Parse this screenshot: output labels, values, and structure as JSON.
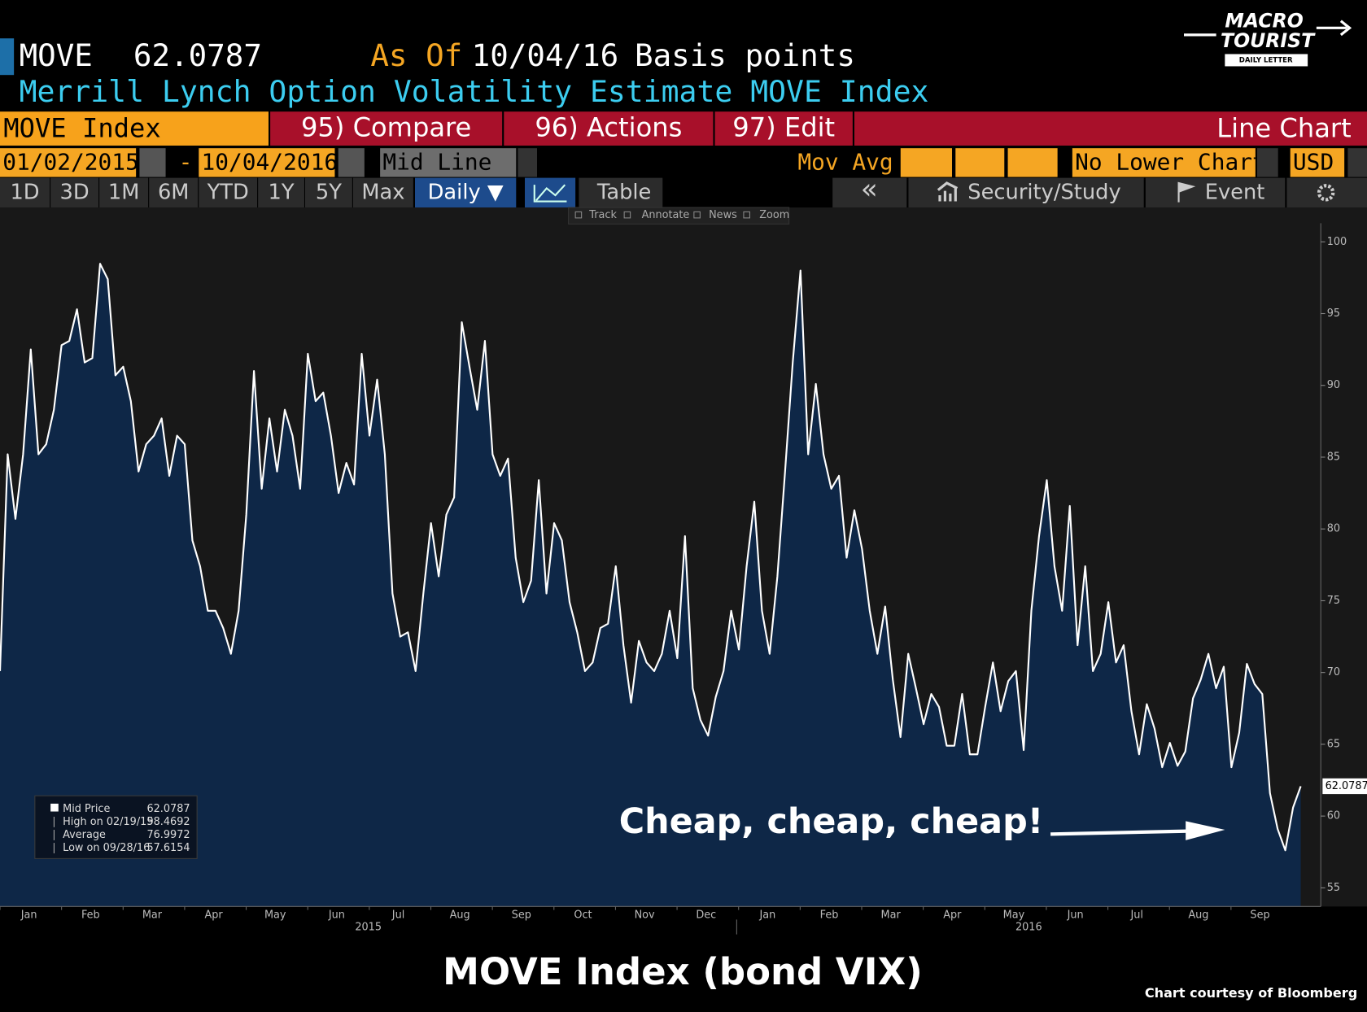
{
  "header": {
    "ticker": "MOVE",
    "value": "62.0787",
    "as_of_label": "As Of",
    "as_of": "10/04/16",
    "units": "Basis points",
    "subtitle": "Merrill Lynch Option Volatility Estimate MOVE Index"
  },
  "logo": {
    "line1": "MACRO",
    "line2": "TOURIST",
    "line3": "DAILY LETTER"
  },
  "toolbar": {
    "security": "MOVE Index",
    "buttons": [
      "95) Compare",
      "96) Actions",
      "97) Edit"
    ],
    "view": "Line Chart"
  },
  "range": {
    "start": "01/02/2015",
    "dash": "-",
    "end": "10/04/2016",
    "price": "Mid Line",
    "mov_avg": "Mov Avg",
    "lower": "No Lower Chart",
    "currency": "USD"
  },
  "tabs": {
    "periods": [
      "1D",
      "3D",
      "1M",
      "6M",
      "YTD",
      "1Y",
      "5Y",
      "Max"
    ],
    "frequency": "Daily ▼",
    "table": "Table",
    "back": "«",
    "study": "Security/Study",
    "event": "Event"
  },
  "tools": [
    "Track",
    "Annotate",
    "News",
    "Zoom"
  ],
  "legend": [
    {
      "label": "High on 02/19/15",
      "value": "98.4692"
    },
    {
      "label": "Average",
      "value": "76.9972"
    },
    {
      "label": "Low on 09/28/16",
      "value": "57.6154"
    }
  ],
  "chart_data": {
    "type": "line",
    "title": "MOVE Index (bond VIX)",
    "annotation": "Cheap, cheap, cheap!",
    "credit": "Chart courtesy of Bloomberg",
    "months": [
      "Jan",
      "Feb",
      "Mar",
      "Apr",
      "May",
      "Jun",
      "Jul",
      "Aug",
      "Sep",
      "Oct",
      "Nov",
      "Dec",
      "Jan",
      "Feb",
      "Mar",
      "Apr",
      "May",
      "Jun",
      "Jul",
      "Aug",
      "Sep"
    ],
    "years": [
      "2015",
      "2016"
    ],
    "series": [
      {
        "name": "Mid Price",
        "color": "#ffffff",
        "fill": "#0e2747",
        "values": [
          70.1,
          85.2,
          80.7,
          85.2,
          92.5,
          85.2,
          85.9,
          88.3,
          92.8,
          93.1,
          95.3,
          91.6,
          91.9,
          98.4692,
          97.4,
          90.7,
          91.3,
          88.9,
          84.0,
          85.9,
          86.5,
          87.7,
          83.7,
          86.5,
          85.9,
          79.2,
          77.4,
          74.3,
          74.3,
          73.1,
          71.3,
          74.3,
          81.0,
          91.0,
          82.8,
          87.7,
          84.0,
          88.3,
          86.5,
          82.8,
          92.2,
          88.9,
          89.5,
          86.5,
          82.5,
          84.6,
          83.1,
          92.2,
          86.5,
          90.4,
          85.2,
          75.5,
          72.5,
          72.8,
          70.1,
          75.5,
          80.4,
          76.7,
          81.0,
          82.2,
          94.4,
          91.3,
          88.3,
          93.1,
          85.2,
          83.7,
          84.9,
          78.0,
          74.9,
          76.4,
          83.4,
          75.5,
          80.4,
          79.2,
          74.9,
          72.8,
          70.1,
          70.7,
          73.1,
          73.4,
          77.4,
          71.9,
          67.9,
          72.2,
          70.7,
          70.1,
          71.3,
          74.3,
          71.0,
          79.5,
          68.9,
          66.7,
          65.6,
          68.3,
          70.1,
          74.3,
          71.6,
          77.4,
          81.9,
          74.3,
          71.3,
          76.7,
          84.0,
          91.6,
          98.0,
          85.2,
          90.1,
          85.2,
          82.8,
          83.7,
          78.0,
          81.3,
          78.6,
          74.3,
          71.3,
          74.6,
          69.5,
          65.5,
          71.3,
          68.9,
          66.4,
          68.5,
          67.6,
          64.9,
          64.9,
          68.5,
          64.3,
          64.3,
          67.6,
          70.7,
          67.3,
          69.4,
          70.1,
          64.6,
          74.3,
          79.5,
          83.4,
          77.4,
          74.3,
          81.6,
          71.9,
          77.4,
          70.1,
          71.3,
          74.9,
          70.7,
          71.9,
          67.3,
          64.3,
          67.8,
          66.1,
          63.4,
          65.1,
          63.5,
          64.5,
          68.2,
          69.5,
          71.3,
          68.9,
          70.4,
          63.4,
          65.8,
          70.6,
          69.2,
          68.5,
          61.6,
          59.1,
          57.6154,
          60.6,
          62.0787
        ]
      }
    ],
    "ylim": [
      53.7,
      101.3
    ],
    "yticks": [
      55,
      60,
      65,
      70,
      75,
      80,
      85,
      90,
      95,
      100
    ],
    "grid": false
  }
}
